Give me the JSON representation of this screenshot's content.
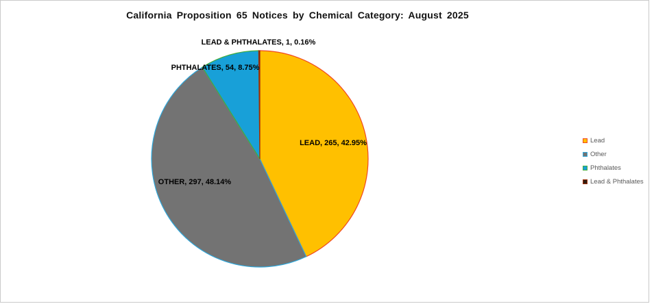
{
  "title": "California Proposition 65 Notices by Chemical Category: August 2025",
  "chart_data": {
    "type": "pie",
    "title": "California Proposition 65 Notices by Chemical Category: August 2025",
    "legend_position": "right",
    "start_angle_deg": 0,
    "direction": "clockwise",
    "slices": [
      {
        "id": "lead",
        "name": "Lead",
        "value": 265,
        "pct": 42.95,
        "label": "LEAD, 265, 42.95%",
        "color": "#FFC000",
        "border_color": "#F04822"
      },
      {
        "id": "other",
        "name": "Other",
        "value": 297,
        "pct": 48.14,
        "label": "OTHER, 297, 48.14%",
        "color": "#737373",
        "border_color": "#2FA8DC"
      },
      {
        "id": "phthalates",
        "name": "Phthalates",
        "value": 54,
        "pct": 8.75,
        "label": "PHTHALATES, 54, 8.75%",
        "color": "#18A0D8",
        "border_color": "#43AC3C"
      },
      {
        "id": "lead-phthalates",
        "name": "Lead & Phthalates",
        "value": 1,
        "pct": 0.16,
        "label": "LEAD & PHTHALATES, 1, 0.16%",
        "color": "#301D12",
        "border_color": "#9E2F06"
      }
    ]
  }
}
